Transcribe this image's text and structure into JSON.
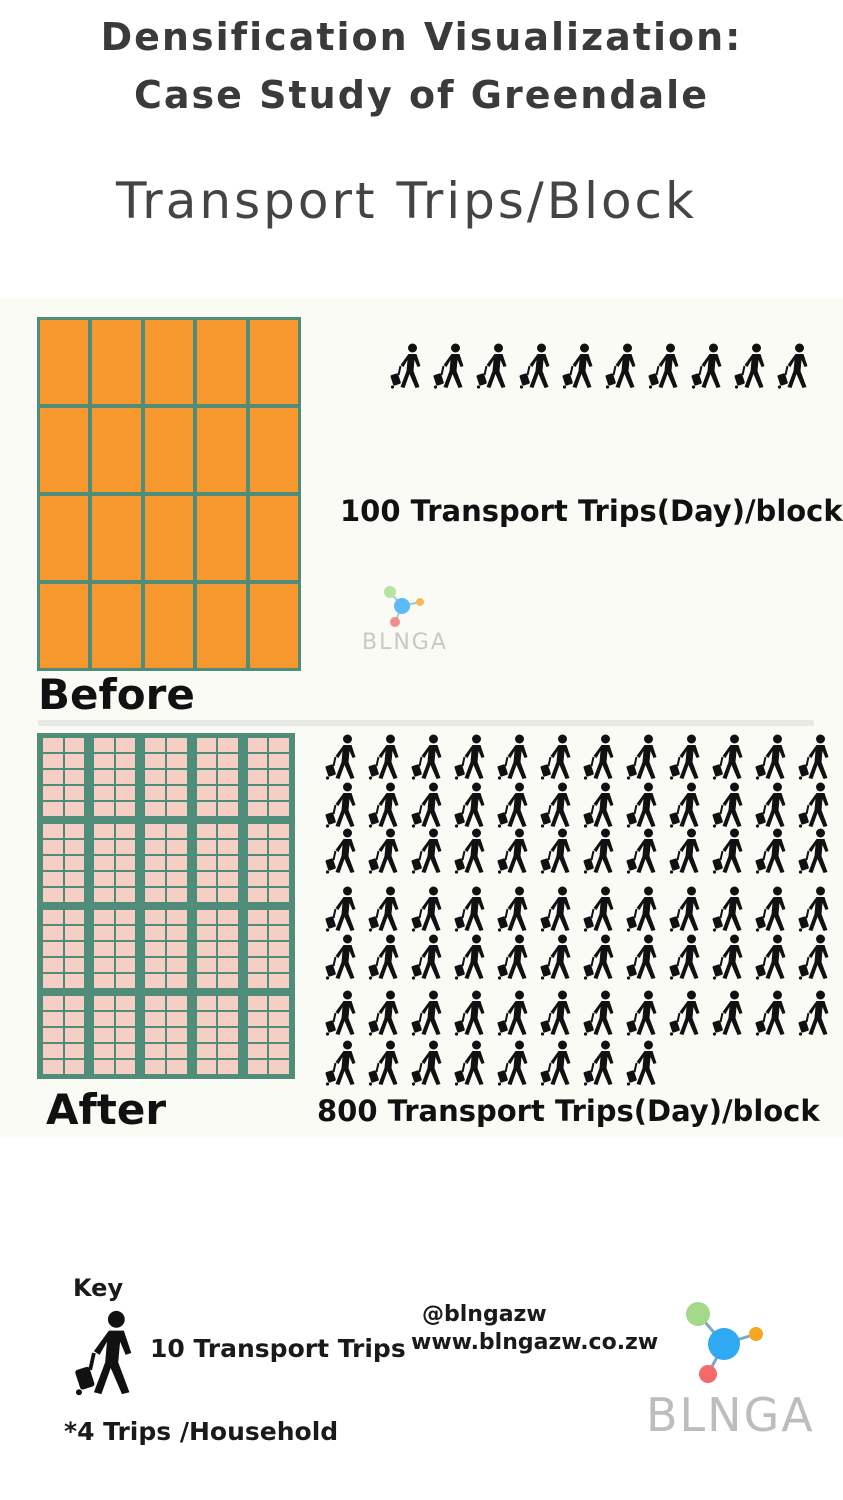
{
  "title_line1": "Densification Visualization:",
  "title_line2": "Case Study of Greendale",
  "subtitle": "Transport Trips/Block",
  "before": {
    "label": "Before",
    "trips_text": "100 Transport Trips(Day)/block",
    "icon_count": 10
  },
  "after": {
    "label": "After",
    "trips_text": "800 Transport Trips(Day)/block",
    "icon_count": 80
  },
  "key": {
    "title": "Key",
    "icon": "pedestrian-with-luggage-icon",
    "value_text": "10 Transport Trips",
    "note": "*4 Trips /Household"
  },
  "contact": {
    "social": "@blngazw",
    "website": "www.blngazw.co.zw"
  },
  "brand": {
    "name": "BLNGA",
    "watermark": "BLNGA",
    "colors": {
      "green": "#a5d98a",
      "blue": "#2fa9f2",
      "orange": "#f5a623",
      "red": "#f36a6a"
    }
  },
  "colors": {
    "before_cell": "#f7982f",
    "block_frame": "#4f8d7a",
    "after_cell": "#f6cfc4"
  }
}
